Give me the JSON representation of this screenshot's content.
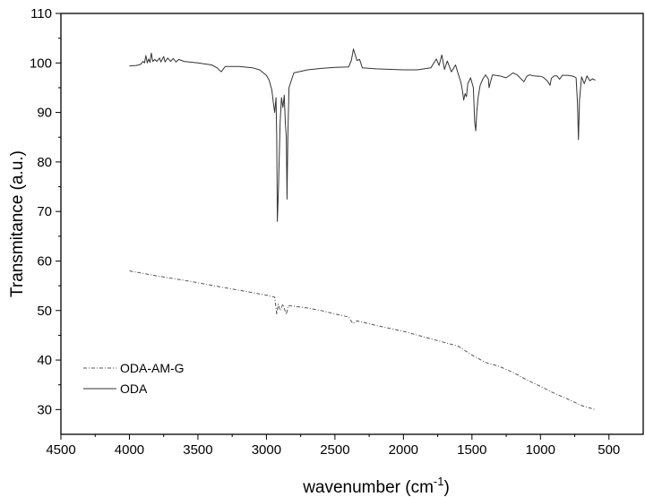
{
  "chart_data": {
    "type": "line",
    "title": "",
    "xlabel": "wavenumber (cm",
    "xlabel_sup": "-1",
    "xlabel_end": ")",
    "ylabel": "Transmitance (a.u.)",
    "xlim": [
      4500,
      250
    ],
    "ylim": [
      25,
      110
    ],
    "x_ticks": [
      4500,
      4000,
      3500,
      3000,
      2500,
      2000,
      1500,
      1000,
      500
    ],
    "x_tick_labels": [
      "4500",
      "4000",
      "3500",
      "3000",
      "2500",
      "2000",
      "1500",
      "1000",
      "500"
    ],
    "y_ticks": [
      30,
      40,
      50,
      60,
      70,
      80,
      90,
      100,
      110
    ],
    "y_tick_labels": [
      "30",
      "40",
      "50",
      "60",
      "70",
      "80",
      "90",
      "100",
      "110"
    ],
    "grid": false,
    "legend_position": "bottom-left",
    "series": [
      {
        "name": "ODA-AM-G",
        "style": "dash-dot",
        "color": "#555555",
        "points": [
          [
            4000,
            58.0
          ],
          [
            3800,
            57.0
          ],
          [
            3600,
            56.1
          ],
          [
            3400,
            55.1
          ],
          [
            3200,
            54.1
          ],
          [
            3000,
            53.1
          ],
          [
            2940,
            52.7
          ],
          [
            2925,
            49.2
          ],
          [
            2915,
            51.3
          ],
          [
            2900,
            50.0
          ],
          [
            2880,
            51.3
          ],
          [
            2855,
            49.2
          ],
          [
            2840,
            51.0
          ],
          [
            2700,
            50.5
          ],
          [
            2600,
            50.0
          ],
          [
            2500,
            49.3
          ],
          [
            2400,
            48.7
          ],
          [
            2370,
            47.4
          ],
          [
            2340,
            47.9
          ],
          [
            2320,
            47.8
          ],
          [
            2200,
            47.0
          ],
          [
            2000,
            45.8
          ],
          [
            1800,
            44.3
          ],
          [
            1600,
            42.8
          ],
          [
            1500,
            41.0
          ],
          [
            1400,
            39.5
          ],
          [
            1300,
            38.7
          ],
          [
            1200,
            37.5
          ],
          [
            1100,
            36.0
          ],
          [
            1000,
            34.7
          ],
          [
            900,
            33.3
          ],
          [
            800,
            32.1
          ],
          [
            700,
            30.8
          ],
          [
            600,
            30.0
          ]
        ]
      },
      {
        "name": "ODA",
        "style": "solid",
        "color": "#333333",
        "points": [
          [
            4000,
            99.4
          ],
          [
            3950,
            99.5
          ],
          [
            3920,
            99.7
          ],
          [
            3900,
            100.3
          ],
          [
            3890,
            100.0
          ],
          [
            3880,
            101.5
          ],
          [
            3870,
            100.0
          ],
          [
            3860,
            100.8
          ],
          [
            3850,
            100.1
          ],
          [
            3840,
            102.0
          ],
          [
            3830,
            100.3
          ],
          [
            3815,
            100.7
          ],
          [
            3800,
            100.3
          ],
          [
            3780,
            101.0
          ],
          [
            3770,
            100.2
          ],
          [
            3750,
            101.3
          ],
          [
            3740,
            100.2
          ],
          [
            3720,
            101.0
          ],
          [
            3700,
            100.3
          ],
          [
            3680,
            100.9
          ],
          [
            3660,
            100.2
          ],
          [
            3640,
            100.7
          ],
          [
            3600,
            100.3
          ],
          [
            3500,
            100.0
          ],
          [
            3400,
            99.6
          ],
          [
            3360,
            99.0
          ],
          [
            3330,
            98.2
          ],
          [
            3300,
            99.3
          ],
          [
            3200,
            99.3
          ],
          [
            3100,
            99.0
          ],
          [
            3050,
            98.6
          ],
          [
            3000,
            97.5
          ],
          [
            2980,
            96.5
          ],
          [
            2960,
            94.5
          ],
          [
            2950,
            92.0
          ],
          [
            2940,
            90.0
          ],
          [
            2930,
            93.0
          ],
          [
            2925,
            85.0
          ],
          [
            2920,
            68.0
          ],
          [
            2912,
            75.0
          ],
          [
            2900,
            88.0
          ],
          [
            2890,
            93.0
          ],
          [
            2880,
            91.0
          ],
          [
            2870,
            93.5
          ],
          [
            2862,
            88.0
          ],
          [
            2855,
            85.0
          ],
          [
            2850,
            72.5
          ],
          [
            2844,
            85.0
          ],
          [
            2835,
            95.0
          ],
          [
            2800,
            98.0
          ],
          [
            2700,
            98.6
          ],
          [
            2600,
            98.9
          ],
          [
            2500,
            99.1
          ],
          [
            2400,
            99.2
          ],
          [
            2380,
            100.5
          ],
          [
            2365,
            102.8
          ],
          [
            2350,
            101.5
          ],
          [
            2340,
            100.5
          ],
          [
            2320,
            100.7
          ],
          [
            2300,
            99.0
          ],
          [
            2200,
            98.8
          ],
          [
            2000,
            98.6
          ],
          [
            1900,
            98.6
          ],
          [
            1800,
            99.0
          ],
          [
            1760,
            100.8
          ],
          [
            1740,
            99.5
          ],
          [
            1720,
            101.6
          ],
          [
            1700,
            98.7
          ],
          [
            1680,
            100.4
          ],
          [
            1650,
            98.2
          ],
          [
            1620,
            99.6
          ],
          [
            1600,
            97.8
          ],
          [
            1580,
            96.0
          ],
          [
            1570,
            94.5
          ],
          [
            1560,
            92.5
          ],
          [
            1550,
            93.8
          ],
          [
            1540,
            93.2
          ],
          [
            1530,
            95.8
          ],
          [
            1510,
            97.0
          ],
          [
            1490,
            95.0
          ],
          [
            1480,
            88.0
          ],
          [
            1472,
            86.3
          ],
          [
            1465,
            90.0
          ],
          [
            1455,
            93.0
          ],
          [
            1440,
            95.5
          ],
          [
            1420,
            96.8
          ],
          [
            1400,
            97.6
          ],
          [
            1380,
            96.7
          ],
          [
            1375,
            95.0
          ],
          [
            1360,
            96.6
          ],
          [
            1350,
            97.6
          ],
          [
            1300,
            97.4
          ],
          [
            1250,
            97.0
          ],
          [
            1200,
            98.0
          ],
          [
            1170,
            97.6
          ],
          [
            1120,
            96.2
          ],
          [
            1100,
            97.3
          ],
          [
            1080,
            97.6
          ],
          [
            1050,
            97.4
          ],
          [
            1000,
            97.3
          ],
          [
            980,
            97.1
          ],
          [
            950,
            96.4
          ],
          [
            930,
            95.5
          ],
          [
            920,
            96.9
          ],
          [
            900,
            97.4
          ],
          [
            880,
            97.4
          ],
          [
            860,
            96.7
          ],
          [
            840,
            97.5
          ],
          [
            800,
            97.5
          ],
          [
            760,
            97.3
          ],
          [
            740,
            97.0
          ],
          [
            730,
            92.0
          ],
          [
            723,
            84.5
          ],
          [
            715,
            92.5
          ],
          [
            700,
            97.2
          ],
          [
            680,
            95.8
          ],
          [
            660,
            97.4
          ],
          [
            640,
            96.4
          ],
          [
            620,
            96.8
          ],
          [
            600,
            96.5
          ]
        ]
      }
    ]
  }
}
